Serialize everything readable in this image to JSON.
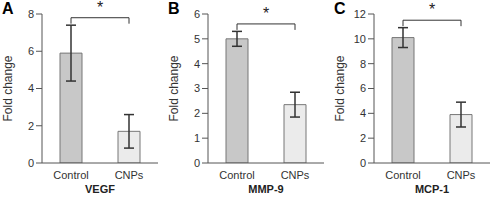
{
  "chart_data": [
    {
      "type": "bar",
      "panel": "A",
      "title": "VEGF",
      "y_label": "Fold change",
      "categories": [
        "Control",
        "CNPs"
      ],
      "values": [
        5.9,
        1.7
      ],
      "errors": [
        1.5,
        0.9
      ],
      "colors": [
        "#c8c8c8",
        "#ebebeb"
      ],
      "ylim": [
        0,
        8
      ],
      "yticks": [
        0,
        2,
        4,
        6,
        8
      ],
      "grid": false,
      "annotation": "*"
    },
    {
      "type": "bar",
      "panel": "B",
      "title": "MMP-9",
      "y_label": "Fold change",
      "categories": [
        "Control",
        "CNPs"
      ],
      "values": [
        5.0,
        2.35
      ],
      "errors": [
        0.3,
        0.5
      ],
      "colors": [
        "#c8c8c8",
        "#ebebeb"
      ],
      "ylim": [
        0,
        6
      ],
      "yticks": [
        0,
        1,
        2,
        3,
        4,
        5,
        6
      ],
      "grid": false,
      "annotation": "*"
    },
    {
      "type": "bar",
      "panel": "C",
      "title": "MCP-1",
      "y_label": "Fold change",
      "categories": [
        "Control",
        "CNPs"
      ],
      "values": [
        10.1,
        3.9
      ],
      "errors": [
        0.8,
        1.0
      ],
      "colors": [
        "#c8c8c8",
        "#ebebeb"
      ],
      "ylim": [
        0,
        12
      ],
      "yticks": [
        0,
        2,
        4,
        6,
        8,
        10,
        12
      ],
      "grid": false,
      "annotation": "*"
    }
  ]
}
